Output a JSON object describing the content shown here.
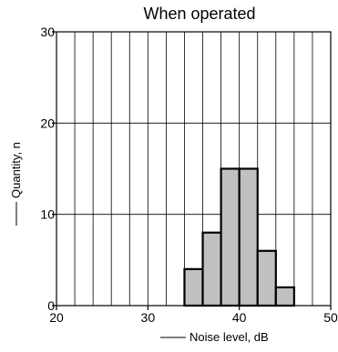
{
  "chart_data": {
    "type": "bar",
    "title": "When operated",
    "xlabel": "Noise level, dB",
    "ylabel": "Quantity, n",
    "xlim": [
      20,
      50
    ],
    "ylim": [
      0,
      30
    ],
    "x_ticks": [
      "20",
      "30",
      "40",
      "50"
    ],
    "y_ticks": [
      "0",
      "10",
      "20",
      "30"
    ],
    "x_minor_step": 2,
    "y_major_step": 10,
    "grid": true,
    "bar_color": "#c0c0c0",
    "bins": [
      {
        "x0": 34,
        "x1": 36,
        "value": 4
      },
      {
        "x0": 36,
        "x1": 38,
        "value": 8
      },
      {
        "x0": 38,
        "x1": 40,
        "value": 15
      },
      {
        "x0": 40,
        "x1": 42,
        "value": 15
      },
      {
        "x0": 42,
        "x1": 44,
        "value": 6
      },
      {
        "x0": 44,
        "x1": 46,
        "value": 2
      }
    ]
  }
}
